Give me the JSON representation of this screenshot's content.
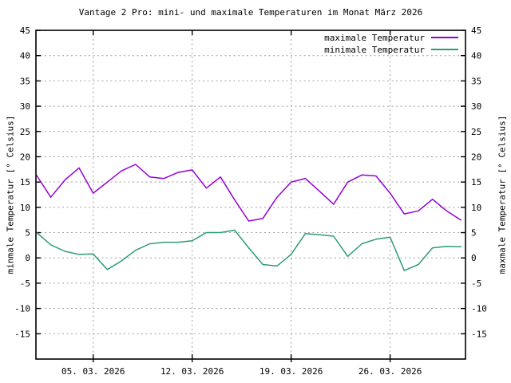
{
  "title": "Vantage 2 Pro: mini- und maximale Temperaturen im Monat März 2026",
  "axes": {
    "left_label": "minmale Temperatur [° Celsius]",
    "right_label": "maxmale Temperatur [° Celsius]"
  },
  "legend": {
    "entries": [
      {
        "label": "maximale Temperatur",
        "series": "max"
      },
      {
        "label": "minimale Temperatur",
        "series": "min"
      }
    ],
    "position": "top-right"
  },
  "colors": {
    "max_line": "#9400D3",
    "min_line": "#2E9B77",
    "grid": "#9e9e9e",
    "border": "#000000",
    "background": "#ffffff"
  },
  "chart_data": {
    "type": "line",
    "x_unit": "day of March 2026",
    "x": [
      1,
      2,
      3,
      4,
      5,
      6,
      7,
      8,
      9,
      10,
      11,
      12,
      13,
      14,
      15,
      16,
      17,
      18,
      19,
      20,
      21,
      22,
      23,
      24,
      25,
      26,
      27,
      28,
      29,
      30,
      31
    ],
    "series": [
      {
        "name": "maximale Temperatur",
        "color": "#9400D3",
        "values": [
          16.3,
          12.0,
          15.4,
          17.8,
          12.8,
          15.0,
          17.2,
          18.5,
          16.0,
          15.7,
          16.9,
          17.4,
          13.8,
          16.0,
          11.5,
          7.3,
          7.8,
          12.0,
          15.0,
          15.7,
          13.2,
          10.6,
          15.0,
          16.4,
          16.2,
          12.8,
          8.7,
          9.3,
          11.6,
          9.3,
          7.5
        ]
      },
      {
        "name": "minimale Temperatur",
        "color": "#2E9B77",
        "values": [
          5.0,
          2.6,
          1.3,
          0.7,
          0.8,
          -2.3,
          -0.6,
          1.5,
          2.8,
          3.1,
          3.1,
          3.4,
          5.0,
          5.0,
          5.5,
          2.0,
          -1.3,
          -1.6,
          0.7,
          4.8,
          4.6,
          4.3,
          0.3,
          2.8,
          3.7,
          4.1,
          -2.5,
          -1.3,
          2.0,
          2.3,
          2.2
        ]
      }
    ],
    "title": "Vantage 2 Pro: mini- und maximale Temperaturen im Monat März 2026",
    "xlabel": "",
    "ylabel_left": "minmale Temperatur [° Celsius]",
    "ylabel_right": "maxmale Temperatur [° Celsius]",
    "xlim": [
      0.95,
      31.33
    ],
    "ylim": [
      -20,
      45
    ],
    "yticks": [
      45,
      40,
      35,
      30,
      25,
      20,
      15,
      10,
      5,
      0,
      -5,
      -10,
      -15
    ],
    "xticks": [
      {
        "pos": 5,
        "label": "05. 03. 2026"
      },
      {
        "pos": 12,
        "label": "12. 03. 2026"
      },
      {
        "pos": 19,
        "label": "19. 03. 2026"
      },
      {
        "pos": 26,
        "label": "26. 03. 2026"
      }
    ],
    "grid": true,
    "legend_position": "top-right"
  }
}
